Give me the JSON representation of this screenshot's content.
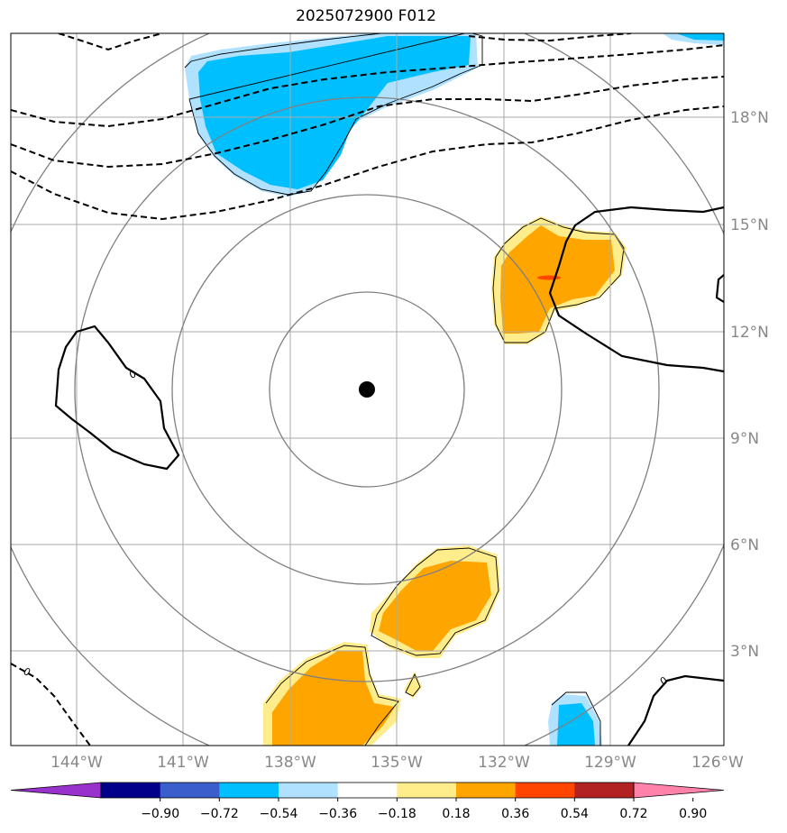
{
  "title": "2025072900 F012",
  "lat_labels": [
    "18°N",
    "15°N",
    "12°N",
    "9°N",
    "6°N",
    "3°N"
  ],
  "lon_labels": [
    "144°W",
    "141°W",
    "138°W",
    "135°W",
    "132°W",
    "129°W",
    "126°W"
  ],
  "contour_zero_label": "0",
  "colorbar": {
    "colors": [
      "#9932cc",
      "#00008b",
      "#3a5fcd",
      "#00bfff",
      "#b0e2ff",
      "#ffffff",
      "#ffec8b",
      "#ffa500",
      "#ff4500",
      "#b22222",
      "#ff82ab"
    ],
    "tick_labels": [
      "−0.90",
      "−0.72",
      "−0.54",
      "−0.36",
      "−0.18",
      "0.18",
      "0.36",
      "0.54",
      "0.72",
      "0.90"
    ]
  },
  "center_marker": "storm-center",
  "colors": {
    "grid": "#aaaaaa",
    "rings": "#808080",
    "axis_labels": "#888888"
  }
}
